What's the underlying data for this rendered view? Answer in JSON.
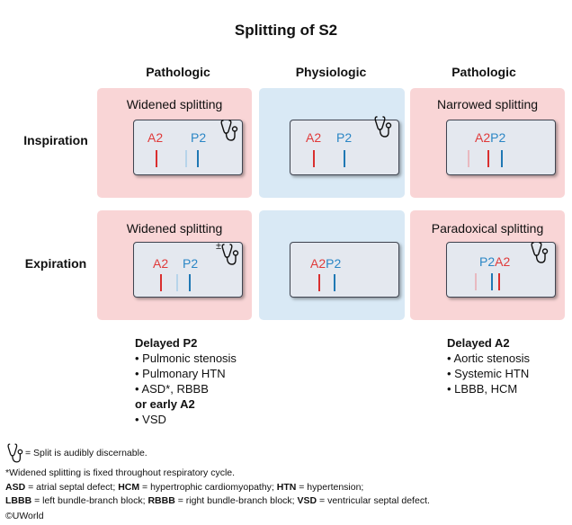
{
  "title": "Splitting of S2",
  "columns": {
    "left": "Pathologic",
    "middle": "Physiologic",
    "right": "Pathologic"
  },
  "rows": {
    "inspiration": "Inspiration",
    "expiration": "Expiration"
  },
  "panels": {
    "insp_left": {
      "label": "Widened splitting",
      "a2": "A2",
      "p2": "P2",
      "steth_mark": ""
    },
    "insp_mid": {
      "label": "",
      "a2": "A2",
      "p2": "P2",
      "steth_mark": ""
    },
    "insp_right": {
      "label": "Narrowed splitting",
      "a2p2": "A2P2"
    },
    "exp_left": {
      "label": "Widened splitting",
      "a2": "A2",
      "p2": "P2",
      "steth_mark": "±"
    },
    "exp_mid": {
      "label": "",
      "a2p2": "A2P2"
    },
    "exp_right": {
      "label": "Paradoxical splitting",
      "p2a2": "P2A2"
    }
  },
  "causes_left": {
    "heading": "Delayed P2",
    "items": [
      "• Pulmonic stenosis",
      "• Pulmonary HTN",
      "• ASD*, RBBB"
    ],
    "heading2": "or early A2",
    "items2": [
      "• VSD"
    ]
  },
  "causes_right": {
    "heading": "Delayed A2",
    "items": [
      "• Aortic stenosis",
      "• Systemic HTN",
      "• LBBB, HCM"
    ]
  },
  "footnotes": {
    "stethoscope_legend": "= Split is audibly discernable.",
    "widened_note": "*Widened splitting is fixed throughout respiratory cycle.",
    "abbr1_a": "ASD",
    "abbr1_a_text": " = atrial septal defect; ",
    "abbr1_b": "HCM",
    "abbr1_b_text": " = hypertrophic cardiomyopathy; ",
    "abbr1_c": "HTN",
    "abbr1_c_text": " = hypertension;",
    "abbr2_a": "LBBB",
    "abbr2_a_text": " = left bundle-branch block; ",
    "abbr2_b": "RBBB",
    "abbr2_b_text": " = right bundle-branch block; ",
    "abbr2_c": "VSD",
    "abbr2_c_text": " = ventricular septal defect.",
    "copyright": "©UWorld"
  },
  "colors": {
    "pink_panel": "#f9d5d6",
    "blue_panel": "#d9e9f5",
    "a2_red": "#e03a3a",
    "p2_blue": "#2b86c5",
    "card": "#e4e8ef"
  },
  "icons": [
    "stethoscope-icon"
  ]
}
